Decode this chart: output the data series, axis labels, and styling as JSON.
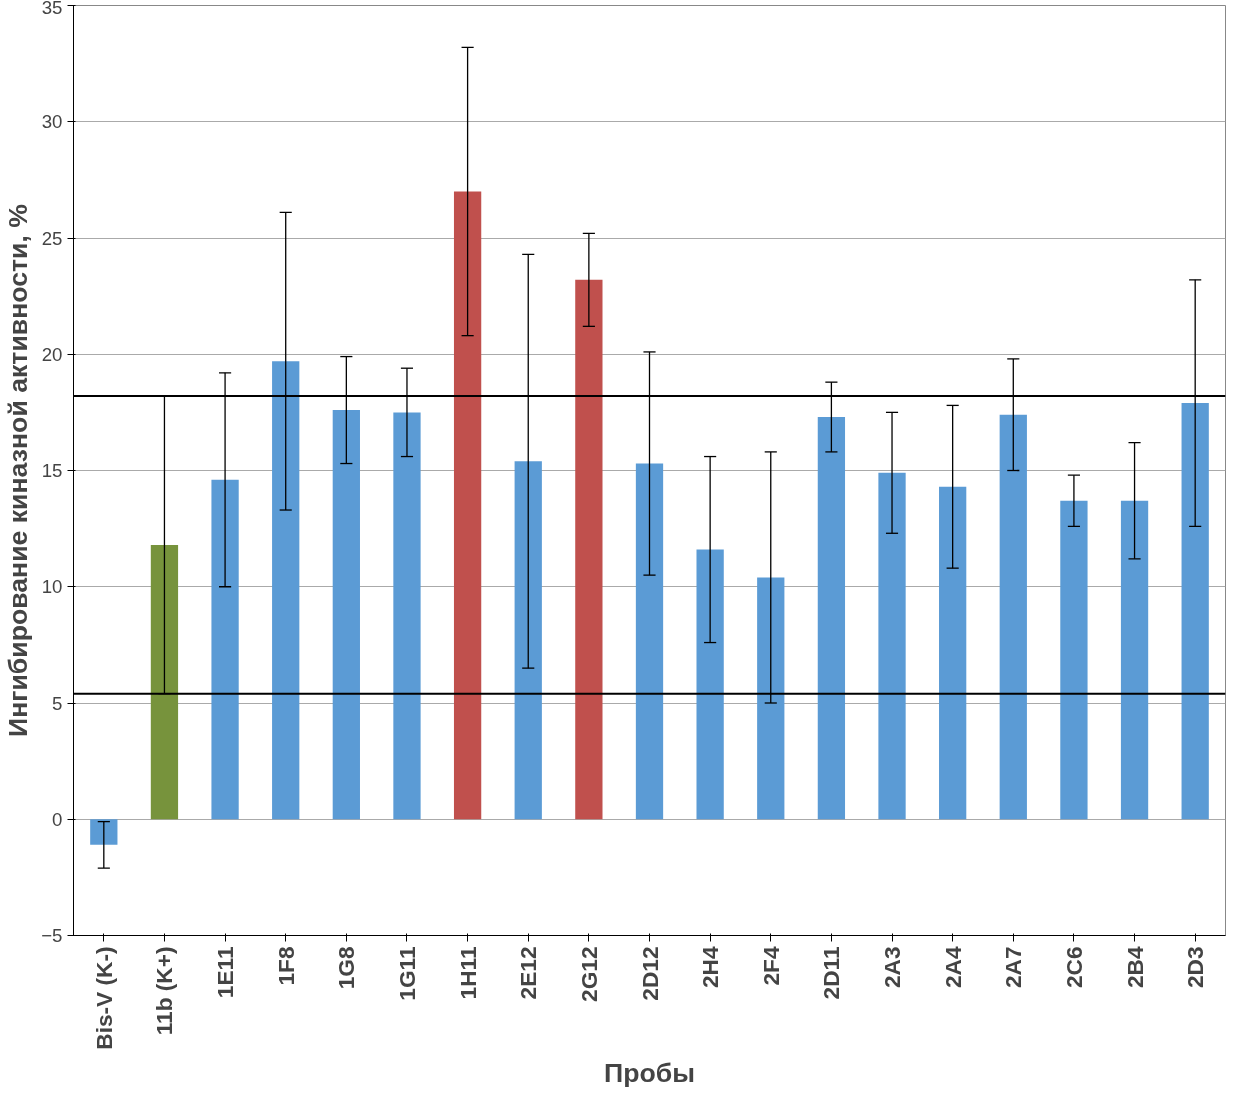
{
  "chart_data": {
    "type": "bar",
    "xlabel": "Пробы",
    "ylabel": "Ингибирование киназной активности, %",
    "categories": [
      "Bis-V (K-)",
      "11b (K+)",
      "1E11",
      "1F8",
      "1G8",
      "1G11",
      "1H11",
      "2E12",
      "2G12",
      "2D12",
      "2H4",
      "2F4",
      "2D11",
      "2A3",
      "2A4",
      "2A7",
      "2C6",
      "2B4",
      "2D3"
    ],
    "values": [
      -1.1,
      11.8,
      14.6,
      19.7,
      17.6,
      17.5,
      27.0,
      15.4,
      23.2,
      15.3,
      11.6,
      10.4,
      17.3,
      14.9,
      14.3,
      17.4,
      13.7,
      13.7,
      17.9
    ],
    "errors": [
      1.0,
      6.4,
      4.6,
      6.4,
      2.3,
      1.9,
      6.2,
      8.9,
      2.0,
      4.8,
      4.0,
      5.4,
      1.5,
      2.6,
      3.5,
      2.4,
      1.1,
      2.5,
      5.3
    ],
    "colors": [
      "#5b9bd5",
      "#77933c",
      "#5b9bd5",
      "#5b9bd5",
      "#5b9bd5",
      "#5b9bd5",
      "#c0504d",
      "#5b9bd5",
      "#c0504d",
      "#5b9bd5",
      "#5b9bd5",
      "#5b9bd5",
      "#5b9bd5",
      "#5b9bd5",
      "#5b9bd5",
      "#5b9bd5",
      "#5b9bd5",
      "#5b9bd5",
      "#5b9bd5"
    ],
    "ylim": [
      -5,
      35
    ],
    "yticks": [
      -5,
      0,
      5,
      10,
      15,
      20,
      25,
      30,
      35
    ],
    "grid": "y",
    "ref_lines": [
      {
        "axis": "y",
        "value": 18.2,
        "color": "#000000"
      },
      {
        "axis": "y",
        "value": 5.4,
        "color": "#000000"
      }
    ]
  }
}
